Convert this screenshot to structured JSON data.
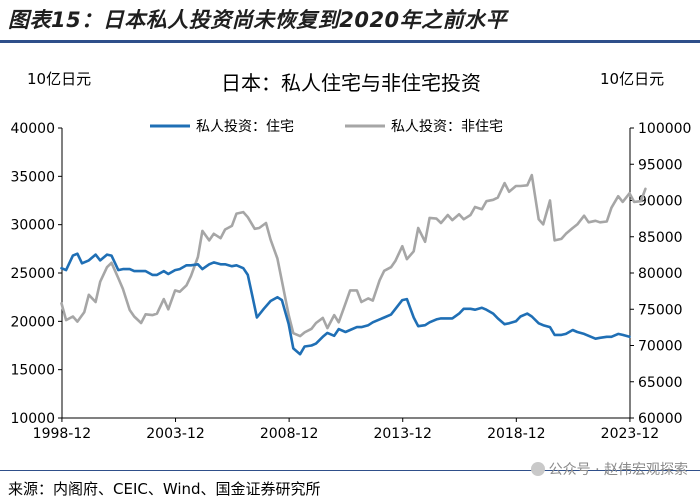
{
  "figure_title": "图表15：日本私人投资尚未恢复到2020年之前水平",
  "source_note": "来源：内阁府、CEIC、Wind、国金证券研究所",
  "watermark": "公众号 · 赵伟宏观探索",
  "chart_data": {
    "type": "line",
    "title": "日本：私人住宅与非住宅投资",
    "left_unit": "10亿日元",
    "right_unit": "10亿日元",
    "x_ticks": [
      "1998-12",
      "2003-12",
      "2008-12",
      "2013-12",
      "2018-12",
      "2023-12"
    ],
    "x_range": [
      1998.92,
      2023.92
    ],
    "y_left": {
      "min": 10000,
      "max": 40000,
      "step": 5000,
      "ticks": [
        "10000",
        "15000",
        "20000",
        "25000",
        "30000",
        "35000",
        "40000"
      ]
    },
    "y_right": {
      "min": 60000,
      "max": 100000,
      "step": 5000,
      "ticks": [
        "60000",
        "65000",
        "70000",
        "75000",
        "80000",
        "85000",
        "90000",
        "95000",
        "100000"
      ]
    },
    "series": [
      {
        "name": "私人投资：住宅",
        "axis": "left",
        "color": "#1f6fb5",
        "points": [
          [
            1998.9,
            25500
          ],
          [
            1999.1,
            25300
          ],
          [
            1999.4,
            26800
          ],
          [
            1999.6,
            27000
          ],
          [
            1999.8,
            26000
          ],
          [
            2000.1,
            26300
          ],
          [
            2000.4,
            26900
          ],
          [
            2000.6,
            26300
          ],
          [
            2000.9,
            26900
          ],
          [
            2001.1,
            26800
          ],
          [
            2001.4,
            25300
          ],
          [
            2001.6,
            25400
          ],
          [
            2001.9,
            25400
          ],
          [
            2002.1,
            25200
          ],
          [
            2002.4,
            25200
          ],
          [
            2002.6,
            25200
          ],
          [
            2002.9,
            24800
          ],
          [
            2003.1,
            24800
          ],
          [
            2003.4,
            25200
          ],
          [
            2003.6,
            24900
          ],
          [
            2003.9,
            25300
          ],
          [
            2004.1,
            25400
          ],
          [
            2004.4,
            25800
          ],
          [
            2004.6,
            25800
          ],
          [
            2004.9,
            25900
          ],
          [
            2005.1,
            25400
          ],
          [
            2005.4,
            25900
          ],
          [
            2005.6,
            26100
          ],
          [
            2005.9,
            25900
          ],
          [
            2006.1,
            25900
          ],
          [
            2006.4,
            25700
          ],
          [
            2006.6,
            25800
          ],
          [
            2006.9,
            25500
          ],
          [
            2007.1,
            24800
          ],
          [
            2007.3,
            22600
          ],
          [
            2007.5,
            20400
          ],
          [
            2007.8,
            21300
          ],
          [
            2008.1,
            22100
          ],
          [
            2008.4,
            22500
          ],
          [
            2008.6,
            22200
          ],
          [
            2008.9,
            19700
          ],
          [
            2009.1,
            17200
          ],
          [
            2009.4,
            16600
          ],
          [
            2009.6,
            17400
          ],
          [
            2009.9,
            17500
          ],
          [
            2010.1,
            17700
          ],
          [
            2010.4,
            18400
          ],
          [
            2010.6,
            18800
          ],
          [
            2010.9,
            18500
          ],
          [
            2011.1,
            19200
          ],
          [
            2011.4,
            18900
          ],
          [
            2011.6,
            19100
          ],
          [
            2011.9,
            19400
          ],
          [
            2012.1,
            19400
          ],
          [
            2012.4,
            19600
          ],
          [
            2012.6,
            19900
          ],
          [
            2012.9,
            20200
          ],
          [
            2013.1,
            20400
          ],
          [
            2013.4,
            20700
          ],
          [
            2013.6,
            21300
          ],
          [
            2013.9,
            22200
          ],
          [
            2014.1,
            22300
          ],
          [
            2014.4,
            20400
          ],
          [
            2014.6,
            19500
          ],
          [
            2014.9,
            19600
          ],
          [
            2015.1,
            19900
          ],
          [
            2015.4,
            20200
          ],
          [
            2015.6,
            20300
          ],
          [
            2015.9,
            20300
          ],
          [
            2016.1,
            20300
          ],
          [
            2016.4,
            20800
          ],
          [
            2016.6,
            21300
          ],
          [
            2016.9,
            21300
          ],
          [
            2017.1,
            21200
          ],
          [
            2017.4,
            21400
          ],
          [
            2017.6,
            21200
          ],
          [
            2017.9,
            20800
          ],
          [
            2018.1,
            20300
          ],
          [
            2018.4,
            19700
          ],
          [
            2018.6,
            19800
          ],
          [
            2018.9,
            20000
          ],
          [
            2019.1,
            20500
          ],
          [
            2019.4,
            20800
          ],
          [
            2019.6,
            20500
          ],
          [
            2019.9,
            19800
          ],
          [
            2020.1,
            19600
          ],
          [
            2020.4,
            19400
          ],
          [
            2020.6,
            18600
          ],
          [
            2020.9,
            18600
          ],
          [
            2021.1,
            18700
          ],
          [
            2021.4,
            19100
          ],
          [
            2021.6,
            18900
          ],
          [
            2021.9,
            18700
          ],
          [
            2022.1,
            18500
          ],
          [
            2022.4,
            18200
          ],
          [
            2022.6,
            18300
          ],
          [
            2022.9,
            18400
          ],
          [
            2023.1,
            18400
          ],
          [
            2023.4,
            18700
          ],
          [
            2023.6,
            18600
          ],
          [
            2023.9,
            18400
          ]
        ]
      },
      {
        "name": "私人投资：非住宅",
        "axis": "right",
        "color": "#a6a6a6",
        "points": [
          [
            1998.9,
            75800
          ],
          [
            1999.1,
            73500
          ],
          [
            1999.4,
            74000
          ],
          [
            1999.6,
            73300
          ],
          [
            1999.9,
            74600
          ],
          [
            2000.1,
            77000
          ],
          [
            2000.4,
            76000
          ],
          [
            2000.6,
            78800
          ],
          [
            2000.9,
            80800
          ],
          [
            2001.1,
            81400
          ],
          [
            2001.4,
            79300
          ],
          [
            2001.6,
            77800
          ],
          [
            2001.9,
            74900
          ],
          [
            2002.1,
            74000
          ],
          [
            2002.4,
            73100
          ],
          [
            2002.6,
            74300
          ],
          [
            2002.9,
            74200
          ],
          [
            2003.1,
            74400
          ],
          [
            2003.4,
            76400
          ],
          [
            2003.6,
            75000
          ],
          [
            2003.9,
            77600
          ],
          [
            2004.1,
            77400
          ],
          [
            2004.4,
            78300
          ],
          [
            2004.6,
            79600
          ],
          [
            2004.9,
            82200
          ],
          [
            2005.1,
            85800
          ],
          [
            2005.4,
            84500
          ],
          [
            2005.6,
            85400
          ],
          [
            2005.9,
            84800
          ],
          [
            2006.1,
            86000
          ],
          [
            2006.4,
            86500
          ],
          [
            2006.6,
            88200
          ],
          [
            2006.9,
            88400
          ],
          [
            2007.1,
            87700
          ],
          [
            2007.4,
            86100
          ],
          [
            2007.6,
            86200
          ],
          [
            2007.9,
            86900
          ],
          [
            2008.1,
            84600
          ],
          [
            2008.4,
            82000
          ],
          [
            2008.6,
            78900
          ],
          [
            2008.9,
            74200
          ],
          [
            2009.1,
            71700
          ],
          [
            2009.4,
            71300
          ],
          [
            2009.6,
            71800
          ],
          [
            2009.9,
            72300
          ],
          [
            2010.1,
            73100
          ],
          [
            2010.4,
            73800
          ],
          [
            2010.6,
            72400
          ],
          [
            2010.9,
            74200
          ],
          [
            2011.1,
            73200
          ],
          [
            2011.4,
            75800
          ],
          [
            2011.6,
            77600
          ],
          [
            2011.9,
            77600
          ],
          [
            2012.1,
            76000
          ],
          [
            2012.4,
            76500
          ],
          [
            2012.6,
            76200
          ],
          [
            2012.9,
            79000
          ],
          [
            2013.1,
            80300
          ],
          [
            2013.4,
            80800
          ],
          [
            2013.6,
            81700
          ],
          [
            2013.9,
            83700
          ],
          [
            2014.1,
            81900
          ],
          [
            2014.4,
            83000
          ],
          [
            2014.6,
            86200
          ],
          [
            2014.9,
            84300
          ],
          [
            2015.1,
            87600
          ],
          [
            2015.4,
            87500
          ],
          [
            2015.6,
            86900
          ],
          [
            2015.9,
            88000
          ],
          [
            2016.1,
            87300
          ],
          [
            2016.4,
            88100
          ],
          [
            2016.6,
            87400
          ],
          [
            2016.9,
            88000
          ],
          [
            2017.1,
            89100
          ],
          [
            2017.4,
            88800
          ],
          [
            2017.6,
            89900
          ],
          [
            2017.9,
            90100
          ],
          [
            2018.1,
            90400
          ],
          [
            2018.4,
            92400
          ],
          [
            2018.6,
            91200
          ],
          [
            2018.9,
            92000
          ],
          [
            2019.1,
            92000
          ],
          [
            2019.4,
            92100
          ],
          [
            2019.6,
            93500
          ],
          [
            2019.9,
            87400
          ],
          [
            2020.1,
            86700
          ],
          [
            2020.4,
            90000
          ],
          [
            2020.6,
            84500
          ],
          [
            2020.9,
            84700
          ],
          [
            2021.1,
            85400
          ],
          [
            2021.4,
            86200
          ],
          [
            2021.6,
            86700
          ],
          [
            2021.9,
            87900
          ],
          [
            2022.1,
            87000
          ],
          [
            2022.4,
            87200
          ],
          [
            2022.6,
            87000
          ],
          [
            2022.9,
            87100
          ],
          [
            2023.1,
            89000
          ],
          [
            2023.4,
            90600
          ],
          [
            2023.6,
            89800
          ],
          [
            2023.9,
            91000
          ],
          [
            2024.1,
            89800
          ],
          [
            2024.4,
            89900
          ],
          [
            2024.6,
            91600
          ]
        ]
      }
    ],
    "legend_position": "top"
  }
}
